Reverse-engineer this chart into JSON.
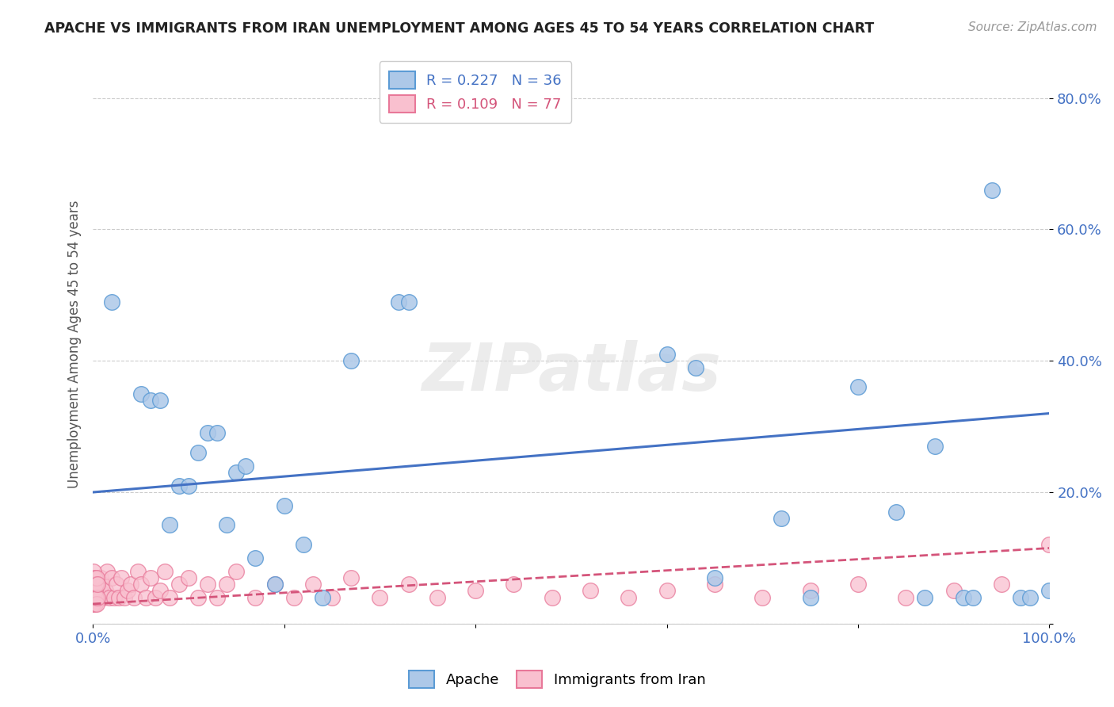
{
  "title": "APACHE VS IMMIGRANTS FROM IRAN UNEMPLOYMENT AMONG AGES 45 TO 54 YEARS CORRELATION CHART",
  "source": "Source: ZipAtlas.com",
  "ylabel": "Unemployment Among Ages 45 to 54 years",
  "xlim": [
    0,
    1.0
  ],
  "ylim": [
    0,
    0.85
  ],
  "apache_color": "#adc8e8",
  "apache_edge_color": "#5b9bd5",
  "apache_line_color": "#4472c4",
  "iran_color": "#f9c0cf",
  "iran_edge_color": "#e87899",
  "iran_line_color": "#d4547a",
  "background_color": "#ffffff",
  "watermark": "ZIPatlas",
  "apache_x": [
    0.02,
    0.05,
    0.06,
    0.07,
    0.08,
    0.09,
    0.1,
    0.11,
    0.12,
    0.13,
    0.14,
    0.15,
    0.16,
    0.17,
    0.19,
    0.2,
    0.22,
    0.24,
    0.27,
    0.32,
    0.33,
    0.6,
    0.63,
    0.65,
    0.72,
    0.75,
    0.8,
    0.84,
    0.87,
    0.88,
    0.91,
    0.92,
    0.94,
    0.97,
    0.98,
    1.0
  ],
  "apache_y": [
    0.49,
    0.35,
    0.34,
    0.34,
    0.15,
    0.21,
    0.21,
    0.26,
    0.29,
    0.29,
    0.15,
    0.23,
    0.24,
    0.1,
    0.06,
    0.18,
    0.12,
    0.04,
    0.4,
    0.49,
    0.49,
    0.41,
    0.39,
    0.07,
    0.16,
    0.04,
    0.36,
    0.17,
    0.04,
    0.27,
    0.04,
    0.04,
    0.66,
    0.04,
    0.04,
    0.05
  ],
  "iran_x": [
    0.0,
    0.001,
    0.002,
    0.003,
    0.004,
    0.005,
    0.006,
    0.007,
    0.008,
    0.009,
    0.01,
    0.011,
    0.013,
    0.015,
    0.017,
    0.02,
    0.022,
    0.025,
    0.027,
    0.03,
    0.033,
    0.036,
    0.04,
    0.043,
    0.047,
    0.05,
    0.055,
    0.06,
    0.065,
    0.07,
    0.075,
    0.08,
    0.09,
    0.1,
    0.11,
    0.12,
    0.13,
    0.14,
    0.15,
    0.17,
    0.19,
    0.21,
    0.23,
    0.25,
    0.27,
    0.3,
    0.33,
    0.36,
    0.4,
    0.44,
    0.48,
    0.52,
    0.56,
    0.6,
    0.65,
    0.7,
    0.75,
    0.8,
    0.85,
    0.9,
    0.95,
    1.0
  ],
  "iran_y": [
    0.04,
    0.03,
    0.04,
    0.06,
    0.04,
    0.06,
    0.04,
    0.05,
    0.07,
    0.04,
    0.06,
    0.04,
    0.05,
    0.08,
    0.04,
    0.07,
    0.04,
    0.06,
    0.04,
    0.07,
    0.04,
    0.05,
    0.06,
    0.04,
    0.08,
    0.06,
    0.04,
    0.07,
    0.04,
    0.05,
    0.08,
    0.04,
    0.06,
    0.07,
    0.04,
    0.06,
    0.04,
    0.06,
    0.08,
    0.04,
    0.06,
    0.04,
    0.06,
    0.04,
    0.07,
    0.04,
    0.06,
    0.04,
    0.05,
    0.06,
    0.04,
    0.05,
    0.04,
    0.05,
    0.06,
    0.04,
    0.05,
    0.06,
    0.04,
    0.05,
    0.06,
    0.12
  ],
  "iran_cluster_x": [
    0.0,
    0.0,
    0.0,
    0.001,
    0.001,
    0.001,
    0.002,
    0.002,
    0.002,
    0.003,
    0.003,
    0.004,
    0.004,
    0.005,
    0.005
  ],
  "iran_cluster_y": [
    0.03,
    0.05,
    0.07,
    0.04,
    0.06,
    0.08,
    0.03,
    0.05,
    0.07,
    0.04,
    0.06,
    0.03,
    0.07,
    0.04,
    0.06
  ],
  "legend_apache_label": "R = 0.227   N = 36",
  "legend_iran_label": "R = 0.109   N = 77",
  "apache_trend": [
    0.2,
    0.32
  ],
  "iran_trend_start": 0.03,
  "iran_trend_end": 0.115
}
